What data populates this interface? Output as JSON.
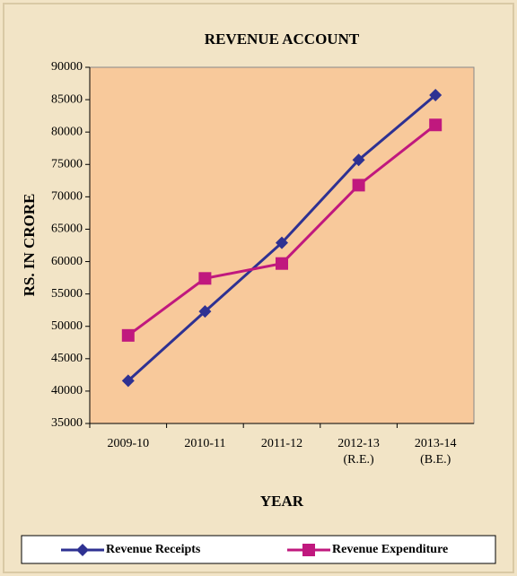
{
  "chart_data": {
    "type": "line",
    "title": "REVENUE ACCOUNT",
    "x_label": "YEAR",
    "y_label": "RS. IN CRORE",
    "categories": [
      "2009-10",
      "2010-11",
      "2011-12",
      "2012-13\n(R.E.)",
      "2013-14\n(B.E.)"
    ],
    "series": [
      {
        "name": "Revenue Receipts",
        "color": "#2e3192",
        "marker": "diamond",
        "values": [
          41600,
          52300,
          62900,
          75700,
          85700
        ]
      },
      {
        "name": "Revenue Expenditure",
        "color": "#c0187e",
        "marker": "square",
        "values": [
          48600,
          57400,
          59700,
          71800,
          81100
        ]
      }
    ],
    "ylim": [
      35000,
      90000
    ],
    "yticks": [
      35000,
      40000,
      45000,
      50000,
      55000,
      60000,
      65000,
      70000,
      75000,
      80000,
      85000,
      90000
    ],
    "grid": false,
    "plot_background": "#f8c99b",
    "legend": "bottom"
  }
}
